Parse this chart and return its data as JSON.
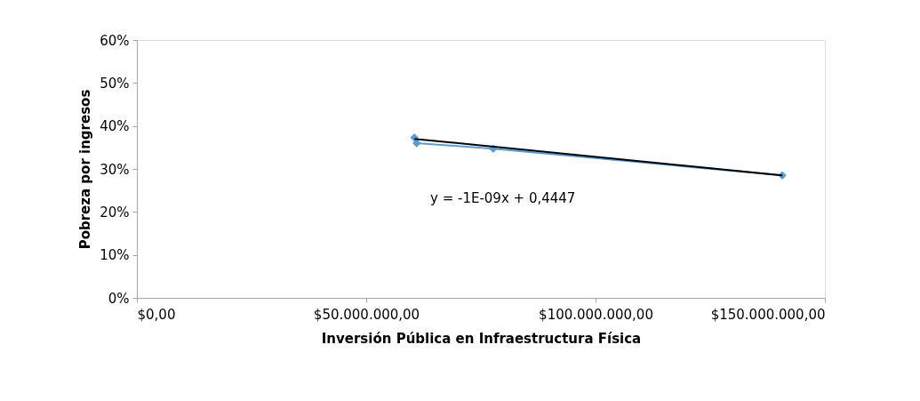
{
  "chart_data": {
    "type": "line",
    "xlabel": "Inversión Pública en Infraestructura Física",
    "ylabel": "Pobreza por ingresos",
    "series": [
      {
        "color": "#5b9bd5",
        "marker": "diamond",
        "line_style": "solid",
        "x": [
          60500000,
          61000000,
          77700000,
          140700000
        ],
        "values": [
          0.373,
          0.36,
          0.347,
          0.285
        ]
      },
      {
        "color": "#000000",
        "marker": "none",
        "line_style": "solid",
        "x": [
          60500000,
          140700000
        ],
        "values": [
          0.37,
          0.285
        ]
      }
    ],
    "xlim": [
      0,
      150000000
    ],
    "xticks": [
      {
        "value": 0,
        "label": "$0,00"
      },
      {
        "value": 50000000,
        "label": "$50.000.000,00"
      },
      {
        "value": 100000000,
        "label": "$100.000.000,00"
      },
      {
        "value": 150000000,
        "label": "$150.000.000,00"
      }
    ],
    "ylim": [
      0,
      0.6
    ],
    "yticks": [
      {
        "value": 0,
        "label": "0%"
      },
      {
        "value": 0.1,
        "label": "10%"
      },
      {
        "value": 0.2,
        "label": "20%"
      },
      {
        "value": 0.3,
        "label": "30%"
      },
      {
        "value": 0.4,
        "label": "40%"
      },
      {
        "value": 0.5,
        "label": "50%"
      },
      {
        "value": 0.6,
        "label": "60%"
      }
    ],
    "annotations": [
      "y = -1E-09x + 0,4447"
    ],
    "grid": false
  }
}
